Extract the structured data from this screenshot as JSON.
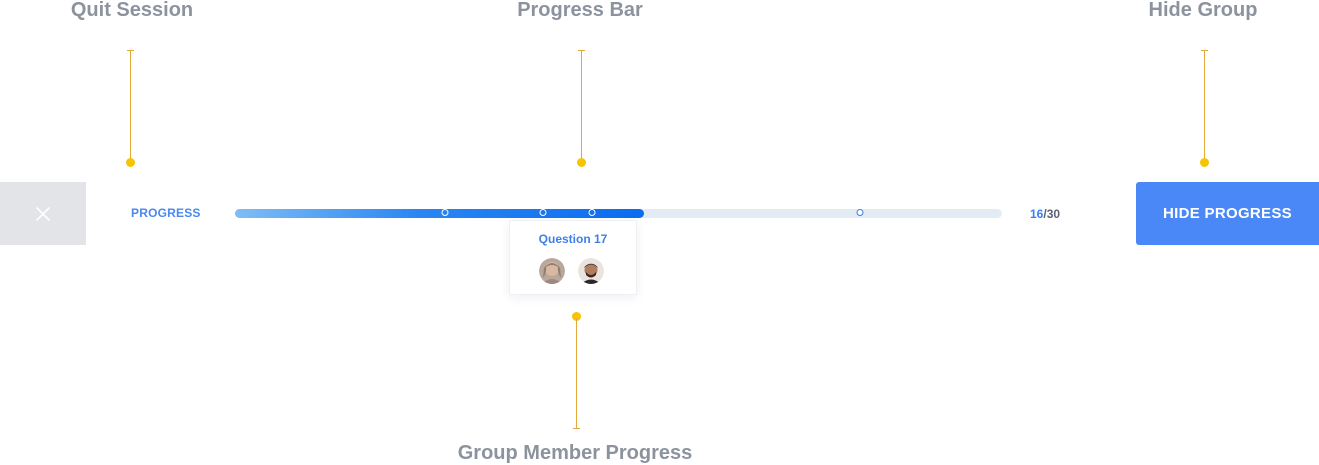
{
  "annotations": {
    "quit_session": "Quit Session",
    "progress_bar": "Progress Bar",
    "hide_group": "Hide Group",
    "group_member_progress": "Group Member Progress"
  },
  "toolbar": {
    "quit_icon": "close-icon",
    "progress_label": "PROGRESS",
    "current": "16",
    "total": "/30",
    "progress_fraction": 0.5333,
    "member_markers": [
      {
        "question": 8
      },
      {
        "question": 12
      },
      {
        "question": 14
      },
      {
        "question": 25
      }
    ],
    "hide_button_label": "HIDE PROGRESS"
  },
  "popover": {
    "title": "Question 17",
    "avatars": [
      "avatar-female-icon",
      "avatar-male-icon"
    ]
  },
  "colors": {
    "accent": "#4a88f7",
    "annotation": "#f6c400",
    "annotation_text": "#8c939f",
    "quit_bg": "#e2e4e8"
  }
}
